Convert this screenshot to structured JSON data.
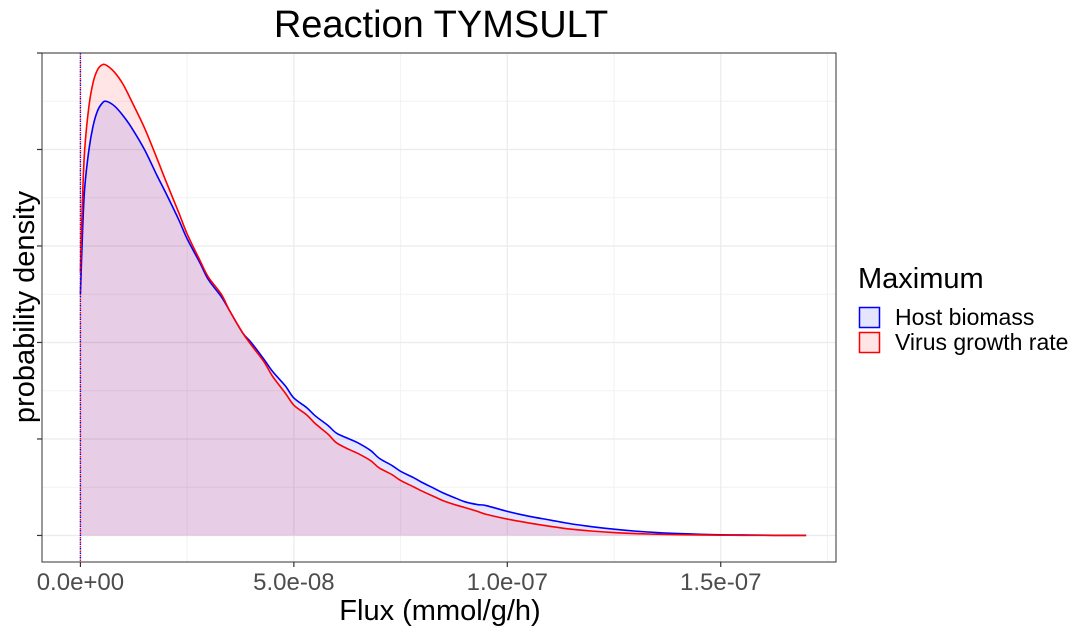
{
  "chart_data": {
    "type": "area",
    "title": "Reaction TYMSULT",
    "xlabel": "Flux (mmol/g/h)",
    "ylabel": "probability density",
    "xlim": [
      -9e-09,
      1.77e-07
    ],
    "ylim": [
      -0.055,
      1.0
    ],
    "x_ticks": [
      0,
      5e-08,
      1e-07,
      1.5e-07
    ],
    "x_tick_labels": [
      "0.0e+00",
      "5.0e-08",
      "1.0e-07",
      "1.5e-07"
    ],
    "y_ticks": [
      0,
      0.2,
      0.4,
      0.6,
      0.8,
      1.0
    ],
    "y_tick_labels_shown": false,
    "grid": true,
    "vline": {
      "x": 0,
      "style": "dotted",
      "colors": [
        "#0000ff",
        "#ff0000"
      ]
    },
    "legend": {
      "title": "Maximum",
      "position": "right",
      "entries": [
        "Host biomass",
        "Virus growth rate"
      ]
    },
    "series": [
      {
        "name": "Host biomass",
        "line_color": "#0000ff",
        "fill_color": "#0000ff",
        "fill_opacity": 0.1,
        "x": [
          0,
          5e-10,
          1e-09,
          2e-09,
          3e-09,
          4e-09,
          5e-09,
          6e-09,
          8e-09,
          1e-08,
          1.2e-08,
          1.5e-08,
          1.8e-08,
          2e-08,
          2.3e-08,
          2.5e-08,
          2.8e-08,
          3e-08,
          3.3e-08,
          3.5e-08,
          3.8e-08,
          4e-08,
          4.3e-08,
          4.5e-08,
          4.8e-08,
          5e-08,
          5.3e-08,
          5.5e-08,
          5.8e-08,
          6e-08,
          6.3e-08,
          6.5e-08,
          6.8e-08,
          7e-08,
          7.3e-08,
          7.5e-08,
          7.8e-08,
          8e-08,
          8.3e-08,
          8.5e-08,
          8.8e-08,
          9e-08,
          9.3e-08,
          9.5e-08,
          1e-07,
          1.05e-07,
          1.1e-07,
          1.15e-07,
          1.2e-07,
          1.25e-07,
          1.3e-07,
          1.35e-07,
          1.4e-07,
          1.45e-07,
          1.5e-07,
          1.55e-07,
          1.6e-07,
          1.65e-07,
          1.7e-07
        ],
        "y": [
          0.5,
          0.63,
          0.72,
          0.8,
          0.85,
          0.88,
          0.895,
          0.9,
          0.89,
          0.87,
          0.845,
          0.8,
          0.745,
          0.71,
          0.655,
          0.615,
          0.565,
          0.53,
          0.495,
          0.465,
          0.42,
          0.4,
          0.365,
          0.34,
          0.31,
          0.285,
          0.265,
          0.248,
          0.228,
          0.212,
          0.2,
          0.192,
          0.176,
          0.16,
          0.145,
          0.133,
          0.12,
          0.11,
          0.097,
          0.088,
          0.077,
          0.07,
          0.064,
          0.062,
          0.05,
          0.04,
          0.032,
          0.024,
          0.018,
          0.013,
          0.009,
          0.006,
          0.004,
          0.0025,
          0.0015,
          0.001,
          0.0005,
          0.0003,
          0.0002
        ]
      },
      {
        "name": "Virus growth rate",
        "line_color": "#ff0000",
        "fill_color": "#ff0000",
        "fill_opacity": 0.1,
        "x": [
          0,
          5e-10,
          1e-09,
          2e-09,
          3e-09,
          4e-09,
          5e-09,
          6e-09,
          8e-09,
          1e-08,
          1.2e-08,
          1.5e-08,
          1.8e-08,
          2e-08,
          2.3e-08,
          2.5e-08,
          2.8e-08,
          3e-08,
          3.3e-08,
          3.5e-08,
          3.8e-08,
          4e-08,
          4.3e-08,
          4.5e-08,
          4.8e-08,
          5e-08,
          5.3e-08,
          5.5e-08,
          5.8e-08,
          6e-08,
          6.3e-08,
          6.5e-08,
          6.8e-08,
          7e-08,
          7.3e-08,
          7.5e-08,
          7.8e-08,
          8e-08,
          8.3e-08,
          8.5e-08,
          8.8e-08,
          9e-08,
          9.3e-08,
          9.5e-08,
          1e-07,
          1.05e-07,
          1.1e-07,
          1.15e-07,
          1.2e-07,
          1.25e-07,
          1.3e-07,
          1.35e-07,
          1.4e-07,
          1.45e-07,
          1.5e-07,
          1.55e-07,
          1.6e-07,
          1.65e-07,
          1.7e-07
        ],
        "y": [
          0.545,
          0.7,
          0.8,
          0.89,
          0.94,
          0.965,
          0.975,
          0.975,
          0.96,
          0.935,
          0.9,
          0.845,
          0.78,
          0.735,
          0.67,
          0.625,
          0.57,
          0.535,
          0.5,
          0.465,
          0.42,
          0.395,
          0.36,
          0.33,
          0.295,
          0.27,
          0.25,
          0.232,
          0.21,
          0.192,
          0.178,
          0.17,
          0.155,
          0.14,
          0.126,
          0.114,
          0.101,
          0.092,
          0.08,
          0.072,
          0.063,
          0.058,
          0.05,
          0.044,
          0.034,
          0.026,
          0.019,
          0.013,
          0.009,
          0.006,
          0.004,
          0.0025,
          0.0015,
          0.001,
          0.0006,
          0.0004,
          0.0002,
          0.0001,
          0.0001
        ]
      }
    ]
  }
}
